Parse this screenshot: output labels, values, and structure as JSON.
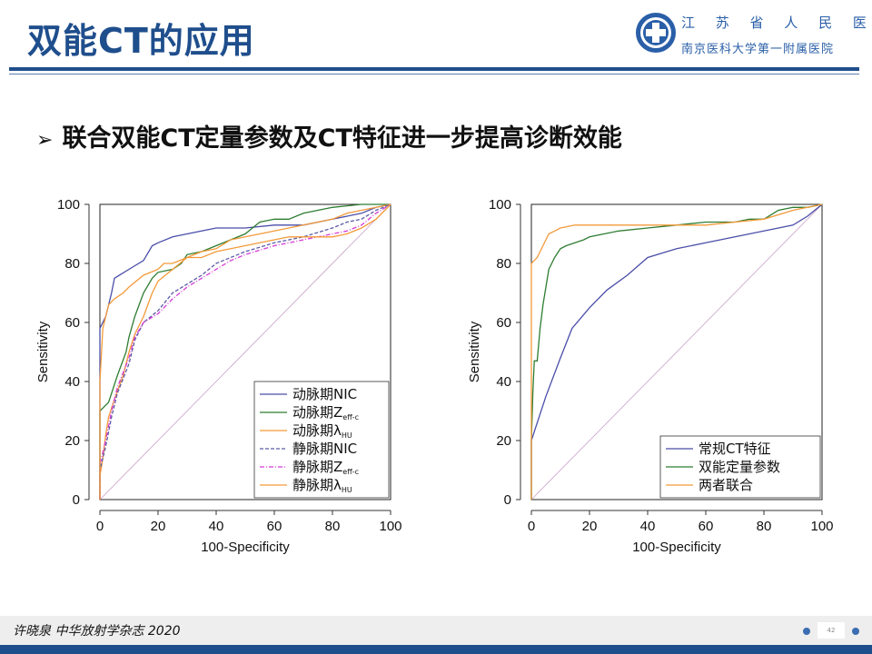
{
  "header": {
    "title": "双能CT的应用",
    "org_line1": "江 苏 省 人 民 医 院",
    "org_line2": "南京医科大学第一附属医院"
  },
  "bullet": {
    "text": "联合双能CT定量参数及CT特征进一步提高诊断效能"
  },
  "footer": {
    "citation": "许晓泉 中华放射学杂志 2020",
    "page": "42"
  },
  "colors": {
    "brand": "#1f4e8c",
    "blue": "#4a4ea8",
    "green": "#2e7d32",
    "orange": "#f39a3a",
    "magenta": "#d63bd6",
    "purple_dash": "#5c5ca6",
    "diagonal": "#c9a0c9"
  },
  "chart_data": [
    {
      "type": "line",
      "xlabel": "100-Specificity",
      "ylabel": "Sensitivity",
      "xlim": [
        0,
        100
      ],
      "ylim": [
        0,
        100
      ],
      "xticks": [
        0,
        20,
        40,
        60,
        80,
        100
      ],
      "yticks": [
        0,
        20,
        40,
        60,
        80,
        100
      ],
      "legend_position": "bottom-right",
      "series": [
        {
          "name": "动脉期NIC",
          "color": "#4a4ea8",
          "dash": "",
          "points": [
            [
              0,
              0
            ],
            [
              0,
              58
            ],
            [
              2,
              62
            ],
            [
              3,
              66
            ],
            [
              4,
              70
            ],
            [
              5,
              75
            ],
            [
              10,
              78
            ],
            [
              15,
              81
            ],
            [
              18,
              86
            ],
            [
              20,
              87
            ],
            [
              25,
              89
            ],
            [
              30,
              90
            ],
            [
              40,
              92
            ],
            [
              50,
              92
            ],
            [
              60,
              93
            ],
            [
              70,
              93
            ],
            [
              80,
              95
            ],
            [
              90,
              97
            ],
            [
              95,
              99
            ],
            [
              100,
              100
            ]
          ]
        },
        {
          "name": "动脉期Z_eff-c",
          "color": "#2e7d32",
          "dash": "",
          "points": [
            [
              0,
              0
            ],
            [
              0,
              30
            ],
            [
              3,
              33
            ],
            [
              6,
              42
            ],
            [
              9,
              50
            ],
            [
              10,
              55
            ],
            [
              12,
              62
            ],
            [
              15,
              70
            ],
            [
              18,
              75
            ],
            [
              20,
              77
            ],
            [
              25,
              78
            ],
            [
              28,
              80
            ],
            [
              30,
              83
            ],
            [
              35,
              84
            ],
            [
              40,
              86
            ],
            [
              45,
              88
            ],
            [
              50,
              90
            ],
            [
              55,
              94
            ],
            [
              60,
              95
            ],
            [
              65,
              95
            ],
            [
              70,
              97
            ],
            [
              80,
              99
            ],
            [
              90,
              100
            ],
            [
              100,
              100
            ]
          ]
        },
        {
          "name": "动脉期λ_HU",
          "color": "#f39a3a",
          "dash": "",
          "points": [
            [
              0,
              0
            ],
            [
              0,
              8
            ],
            [
              1,
              14
            ],
            [
              2,
              22
            ],
            [
              3,
              28
            ],
            [
              5,
              34
            ],
            [
              8,
              42
            ],
            [
              10,
              50
            ],
            [
              12,
              56
            ],
            [
              15,
              62
            ],
            [
              18,
              70
            ],
            [
              20,
              74
            ],
            [
              25,
              78
            ],
            [
              30,
              82
            ],
            [
              35,
              84
            ],
            [
              40,
              85
            ],
            [
              45,
              88
            ],
            [
              50,
              89
            ],
            [
              55,
              90
            ],
            [
              60,
              91
            ],
            [
              65,
              92
            ],
            [
              70,
              93
            ],
            [
              80,
              95
            ],
            [
              85,
              97
            ],
            [
              90,
              98
            ],
            [
              95,
              99
            ],
            [
              100,
              100
            ]
          ]
        },
        {
          "name": "静脉期NIC",
          "color": "#5c5ca6",
          "dash": "4,2",
          "points": [
            [
              0,
              0
            ],
            [
              0,
              10
            ],
            [
              2,
              18
            ],
            [
              4,
              28
            ],
            [
              6,
              36
            ],
            [
              10,
              46
            ],
            [
              12,
              54
            ],
            [
              15,
              60
            ],
            [
              20,
              64
            ],
            [
              25,
              70
            ],
            [
              30,
              73
            ],
            [
              35,
              76
            ],
            [
              40,
              80
            ],
            [
              45,
              82
            ],
            [
              50,
              84
            ],
            [
              60,
              87
            ],
            [
              70,
              89
            ],
            [
              80,
              92
            ],
            [
              85,
              94
            ],
            [
              90,
              95
            ],
            [
              95,
              98
            ],
            [
              100,
              100
            ]
          ]
        },
        {
          "name": "静脉期Z_eff-c",
          "color": "#d63bd6",
          "dash": "5,2,1,2",
          "points": [
            [
              0,
              0
            ],
            [
              0,
              12
            ],
            [
              2,
              20
            ],
            [
              4,
              30
            ],
            [
              6,
              38
            ],
            [
              10,
              48
            ],
            [
              12,
              55
            ],
            [
              15,
              60
            ],
            [
              20,
              63
            ],
            [
              25,
              68
            ],
            [
              30,
              72
            ],
            [
              35,
              75
            ],
            [
              40,
              78
            ],
            [
              45,
              81
            ],
            [
              50,
              83
            ],
            [
              60,
              86
            ],
            [
              70,
              88
            ],
            [
              80,
              90
            ],
            [
              85,
              91
            ],
            [
              90,
              93
            ],
            [
              95,
              97
            ],
            [
              100,
              100
            ]
          ]
        },
        {
          "name": "静脉期λ_HU",
          "color": "#f39a3a",
          "dash": "",
          "points": [
            [
              0,
              0
            ],
            [
              0,
              40
            ],
            [
              1,
              58
            ],
            [
              2,
              62
            ],
            [
              3,
              66
            ],
            [
              5,
              68
            ],
            [
              8,
              70
            ],
            [
              10,
              72
            ],
            [
              15,
              76
            ],
            [
              20,
              78
            ],
            [
              22,
              80
            ],
            [
              25,
              80
            ],
            [
              30,
              82
            ],
            [
              35,
              82
            ],
            [
              40,
              84
            ],
            [
              45,
              85
            ],
            [
              50,
              86
            ],
            [
              55,
              87
            ],
            [
              60,
              88
            ],
            [
              65,
              89
            ],
            [
              70,
              89
            ],
            [
              80,
              89
            ],
            [
              85,
              90
            ],
            [
              90,
              92
            ],
            [
              95,
              95
            ],
            [
              100,
              100
            ]
          ]
        }
      ]
    },
    {
      "type": "line",
      "xlabel": "100-Specificity",
      "ylabel": "Sensitivity",
      "xlim": [
        0,
        100
      ],
      "ylim": [
        0,
        100
      ],
      "xticks": [
        0,
        20,
        40,
        60,
        80,
        100
      ],
      "yticks": [
        0,
        20,
        40,
        60,
        80,
        100
      ],
      "legend_position": "bottom-right",
      "series": [
        {
          "name": "常规CT特征",
          "color": "#4a4ea8",
          "dash": "",
          "points": [
            [
              0,
              0
            ],
            [
              0,
              20
            ],
            [
              5,
              35
            ],
            [
              10,
              48
            ],
            [
              14,
              58
            ],
            [
              20,
              65
            ],
            [
              26,
              71
            ],
            [
              33,
              76
            ],
            [
              40,
              82
            ],
            [
              50,
              85
            ],
            [
              60,
              87
            ],
            [
              70,
              89
            ],
            [
              80,
              91
            ],
            [
              90,
              93
            ],
            [
              95,
              96
            ],
            [
              100,
              100
            ]
          ]
        },
        {
          "name": "双能定量参数",
          "color": "#2e7d32",
          "dash": "",
          "points": [
            [
              0,
              0
            ],
            [
              0,
              20
            ],
            [
              0.5,
              36
            ],
            [
              1,
              47
            ],
            [
              2,
              47
            ],
            [
              3,
              58
            ],
            [
              3.5,
              62
            ],
            [
              4,
              66
            ],
            [
              5,
              72
            ],
            [
              6,
              78
            ],
            [
              7,
              80
            ],
            [
              8,
              82
            ],
            [
              10,
              85
            ],
            [
              12,
              86
            ],
            [
              15,
              87
            ],
            [
              18,
              88
            ],
            [
              20,
              89
            ],
            [
              25,
              90
            ],
            [
              30,
              91
            ],
            [
              40,
              92
            ],
            [
              50,
              93
            ],
            [
              60,
              94
            ],
            [
              70,
              94
            ],
            [
              75,
              95
            ],
            [
              80,
              95
            ],
            [
              85,
              98
            ],
            [
              90,
              99
            ],
            [
              95,
              99
            ],
            [
              100,
              100
            ]
          ]
        },
        {
          "name": "两者联合",
          "color": "#f39a3a",
          "dash": "",
          "points": [
            [
              0,
              0
            ],
            [
              0,
              80
            ],
            [
              2,
              82
            ],
            [
              3,
              84
            ],
            [
              4,
              86
            ],
            [
              6,
              90
            ],
            [
              8,
              91
            ],
            [
              10,
              92
            ],
            [
              15,
              93
            ],
            [
              20,
              93
            ],
            [
              30,
              93
            ],
            [
              40,
              93
            ],
            [
              50,
              93
            ],
            [
              60,
              93
            ],
            [
              70,
              94
            ],
            [
              80,
              95
            ],
            [
              90,
              98
            ],
            [
              95,
              99
            ],
            [
              100,
              100
            ]
          ]
        }
      ]
    }
  ]
}
